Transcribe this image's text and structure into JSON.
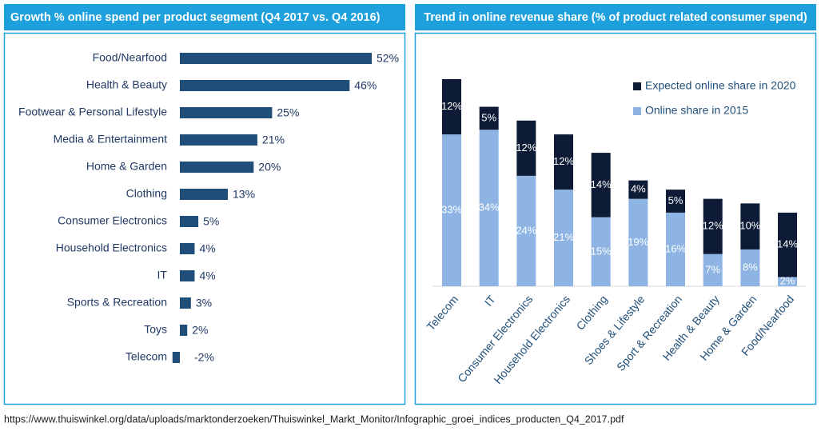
{
  "chart_data": [
    {
      "type": "hbar",
      "title": "Growth % online spend per product segment (Q4 2017 vs. Q4 2016)",
      "categories": [
        "Food/Nearfood",
        "Health & Beauty",
        "Footwear & Personal Lifestyle",
        "Media & Entertainment",
        "Home & Garden",
        "Clothing",
        "Consumer Electronics",
        "Household Electronics",
        "IT",
        "Sports & Recreation",
        "Toys",
        "Telecom"
      ],
      "values": [
        52,
        46,
        25,
        21,
        20,
        13,
        5,
        4,
        4,
        3,
        2,
        -2
      ],
      "value_labels": [
        "52%",
        "46%",
        "25%",
        "21%",
        "20%",
        "13%",
        "5%",
        "4%",
        "4%",
        "3%",
        "2%",
        "-2%"
      ],
      "color": "#1f4e79"
    },
    {
      "type": "stacked_bar",
      "title": "Trend in online revenue share (% of product related consumer spend)",
      "categories": [
        "Telecom",
        "IT",
        "Consumer Electronics",
        "Household Electronics",
        "Clothing",
        "Shoes & Lifestyle",
        "Sport & Recreation",
        "Health & Beauty",
        "Home & Garden",
        "Food/Nearfood"
      ],
      "series": [
        {
          "name": "Online share in 2015",
          "color": "#8db4e3",
          "values": [
            33,
            34,
            24,
            21,
            15,
            19,
            16,
            7,
            8,
            2
          ],
          "value_labels": [
            "33%",
            "34%",
            "24%",
            "21%",
            "15%",
            "19%",
            "16%",
            "7%",
            "8%",
            "2%"
          ]
        },
        {
          "name": "Expected online share in 2020",
          "color": "#0e1b36",
          "values": [
            12,
            5,
            12,
            12,
            14,
            4,
            5,
            12,
            10,
            14
          ],
          "value_labels": [
            "12%",
            "5%",
            "12%",
            "12%",
            "14%",
            "4%",
            "5%",
            "12%",
            "10%",
            "14%"
          ]
        }
      ],
      "legend": "top-right"
    }
  ],
  "source": "https://www.thuiswinkel.org/data/uploads/marktonderzoeken/Thuiswinkel_Markt_Monitor/Infographic_groei_indices_producten_Q4_2017.pdf"
}
